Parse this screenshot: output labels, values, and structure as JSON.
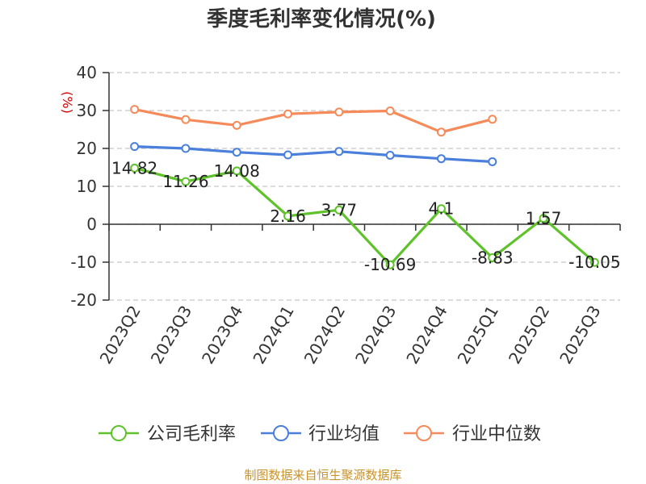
{
  "chart_data": {
    "type": "line",
    "title": "季度毛利率变化情况(%)",
    "ylabel": "(%)",
    "xlabel": "",
    "ylim": [
      -20,
      40
    ],
    "yticks": [
      40,
      30,
      20,
      10,
      0,
      -10,
      -20
    ],
    "grid": true,
    "legend_position": "bottom",
    "categories": [
      "2023Q2",
      "2023Q3",
      "2023Q4",
      "2024Q1",
      "2024Q2",
      "2024Q3",
      "2024Q4",
      "2025Q1",
      "2025Q2",
      "2025Q3"
    ],
    "series": [
      {
        "name": "公司毛利率",
        "color": "#5ec22a",
        "values": [
          14.82,
          11.26,
          14.08,
          2.16,
          3.77,
          -10.69,
          4.1,
          -8.83,
          1.57,
          -10.05
        ],
        "labels": [
          "14.82",
          "11.26",
          "14.08",
          "2.16",
          "3.77",
          "-10.69",
          "4.1",
          "-8.83",
          "1.57",
          "-10.05"
        ]
      },
      {
        "name": "行业均值",
        "color": "#4a7fdc",
        "values": [
          20.5,
          20.0,
          19.0,
          18.3,
          19.2,
          18.2,
          17.3,
          16.5,
          null,
          null
        ]
      },
      {
        "name": "行业中位数",
        "color": "#f58a5a",
        "values": [
          30.3,
          27.6,
          26.1,
          29.1,
          29.6,
          29.9,
          24.3,
          27.7,
          null,
          null
        ]
      }
    ]
  },
  "source": "制图数据来自恒生聚源数据库"
}
